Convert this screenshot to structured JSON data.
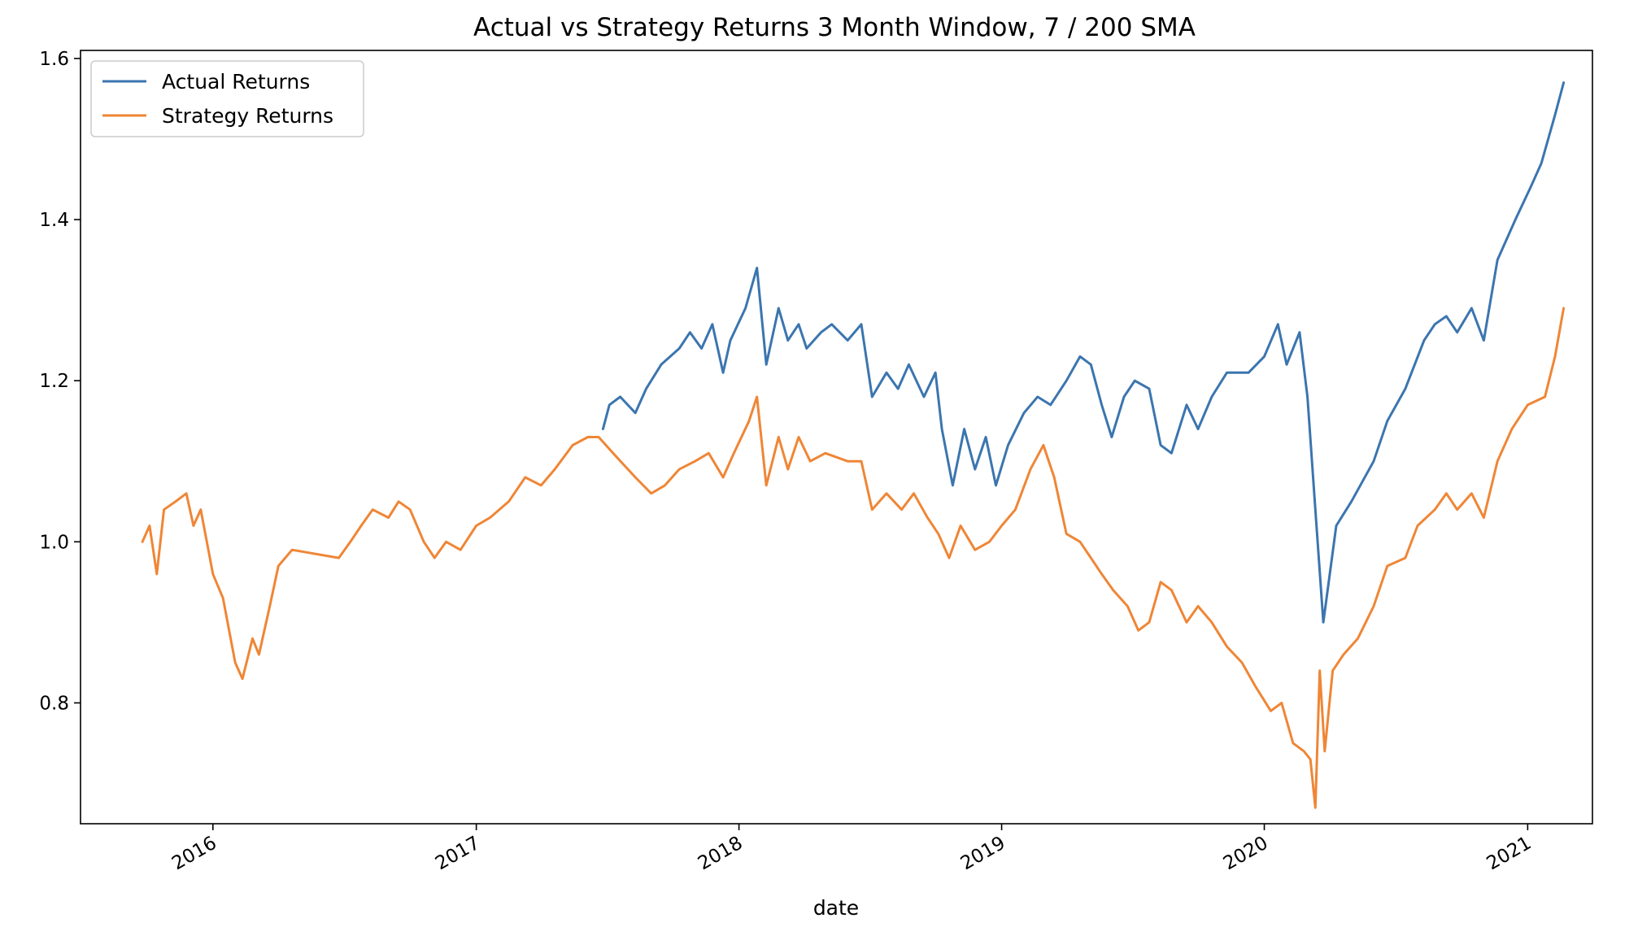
{
  "chart_data": {
    "type": "line",
    "title": "Actual vs Strategy Returns 3 Month Window, 7 / 200 SMA",
    "xlabel": "date",
    "ylabel": "",
    "x_range": [
      "2015-07-01",
      "2021-04-01"
    ],
    "ylim": [
      0.65,
      1.61
    ],
    "y_ticks": [
      0.8,
      1.0,
      1.2,
      1.4,
      1.6
    ],
    "y_tick_labels": [
      "0.8",
      "1.0",
      "1.2",
      "1.4",
      "1.6"
    ],
    "x_ticks": [
      "2016-01-01",
      "2017-01-01",
      "2018-01-01",
      "2019-01-01",
      "2020-01-01",
      "2021-01-01"
    ],
    "x_tick_labels": [
      "2016",
      "2017",
      "2018",
      "2019",
      "2020",
      "2021"
    ],
    "grid": false,
    "legend_position": "top-left",
    "series": [
      {
        "name": "Actual Returns",
        "color": "#3b75af",
        "points": [
          [
            "2017-06-26",
            1.14
          ],
          [
            "2017-07-05",
            1.17
          ],
          [
            "2017-07-20",
            1.18
          ],
          [
            "2017-08-10",
            1.16
          ],
          [
            "2017-08-25",
            1.19
          ],
          [
            "2017-09-15",
            1.22
          ],
          [
            "2017-10-10",
            1.24
          ],
          [
            "2017-10-25",
            1.26
          ],
          [
            "2017-11-10",
            1.24
          ],
          [
            "2017-11-25",
            1.27
          ],
          [
            "2017-12-10",
            1.21
          ],
          [
            "2017-12-20",
            1.25
          ],
          [
            "2018-01-10",
            1.29
          ],
          [
            "2018-01-26",
            1.34
          ],
          [
            "2018-02-08",
            1.22
          ],
          [
            "2018-02-25",
            1.29
          ],
          [
            "2018-03-10",
            1.25
          ],
          [
            "2018-03-25",
            1.27
          ],
          [
            "2018-04-05",
            1.24
          ],
          [
            "2018-04-25",
            1.26
          ],
          [
            "2018-05-10",
            1.27
          ],
          [
            "2018-06-01",
            1.25
          ],
          [
            "2018-06-20",
            1.27
          ],
          [
            "2018-07-05",
            1.18
          ],
          [
            "2018-07-25",
            1.21
          ],
          [
            "2018-08-10",
            1.19
          ],
          [
            "2018-08-25",
            1.22
          ],
          [
            "2018-09-15",
            1.18
          ],
          [
            "2018-10-01",
            1.21
          ],
          [
            "2018-10-10",
            1.14
          ],
          [
            "2018-10-25",
            1.07
          ],
          [
            "2018-11-10",
            1.14
          ],
          [
            "2018-11-25",
            1.09
          ],
          [
            "2018-12-10",
            1.13
          ],
          [
            "2018-12-24",
            1.07
          ],
          [
            "2019-01-10",
            1.12
          ],
          [
            "2019-02-01",
            1.16
          ],
          [
            "2019-02-20",
            1.18
          ],
          [
            "2019-03-10",
            1.17
          ],
          [
            "2019-04-01",
            1.2
          ],
          [
            "2019-04-20",
            1.23
          ],
          [
            "2019-05-05",
            1.22
          ],
          [
            "2019-05-20",
            1.17
          ],
          [
            "2019-06-03",
            1.13
          ],
          [
            "2019-06-20",
            1.18
          ],
          [
            "2019-07-05",
            1.2
          ],
          [
            "2019-07-25",
            1.19
          ],
          [
            "2019-08-10",
            1.12
          ],
          [
            "2019-08-25",
            1.11
          ],
          [
            "2019-09-15",
            1.17
          ],
          [
            "2019-10-01",
            1.14
          ],
          [
            "2019-10-20",
            1.18
          ],
          [
            "2019-11-10",
            1.21
          ],
          [
            "2019-12-10",
            1.21
          ],
          [
            "2020-01-01",
            1.23
          ],
          [
            "2020-01-20",
            1.27
          ],
          [
            "2020-02-01",
            1.22
          ],
          [
            "2020-02-19",
            1.26
          ],
          [
            "2020-03-01",
            1.18
          ],
          [
            "2020-03-12",
            1.04
          ],
          [
            "2020-03-23",
            0.9
          ],
          [
            "2020-04-10",
            1.02
          ],
          [
            "2020-05-01",
            1.05
          ],
          [
            "2020-06-01",
            1.1
          ],
          [
            "2020-06-20",
            1.15
          ],
          [
            "2020-07-15",
            1.19
          ],
          [
            "2020-08-10",
            1.25
          ],
          [
            "2020-08-25",
            1.27
          ],
          [
            "2020-09-10",
            1.28
          ],
          [
            "2020-09-25",
            1.26
          ],
          [
            "2020-10-15",
            1.29
          ],
          [
            "2020-11-01",
            1.25
          ],
          [
            "2020-11-20",
            1.35
          ],
          [
            "2020-12-15",
            1.4
          ],
          [
            "2021-01-05",
            1.44
          ],
          [
            "2021-01-20",
            1.47
          ],
          [
            "2021-02-08",
            1.53
          ],
          [
            "2021-02-20",
            1.57
          ]
        ]
      },
      {
        "name": "Strategy Returns",
        "color": "#ef8636",
        "points": [
          [
            "2015-09-25",
            1.0
          ],
          [
            "2015-10-05",
            1.02
          ],
          [
            "2015-10-15",
            0.96
          ],
          [
            "2015-10-25",
            1.04
          ],
          [
            "2015-11-10",
            1.05
          ],
          [
            "2015-11-25",
            1.06
          ],
          [
            "2015-12-05",
            1.02
          ],
          [
            "2015-12-15",
            1.04
          ],
          [
            "2016-01-01",
            0.96
          ],
          [
            "2016-01-15",
            0.93
          ],
          [
            "2016-02-01",
            0.85
          ],
          [
            "2016-02-11",
            0.83
          ],
          [
            "2016-02-25",
            0.88
          ],
          [
            "2016-03-05",
            0.86
          ],
          [
            "2016-03-20",
            0.92
          ],
          [
            "2016-04-01",
            0.97
          ],
          [
            "2016-04-20",
            0.99
          ],
          [
            "2016-06-24",
            0.98
          ],
          [
            "2016-07-10",
            1.0
          ],
          [
            "2016-07-25",
            1.02
          ],
          [
            "2016-08-10",
            1.04
          ],
          [
            "2016-09-01",
            1.03
          ],
          [
            "2016-09-15",
            1.05
          ],
          [
            "2016-10-01",
            1.04
          ],
          [
            "2016-10-20",
            1.0
          ],
          [
            "2016-11-04",
            0.98
          ],
          [
            "2016-11-20",
            1.0
          ],
          [
            "2016-12-10",
            0.99
          ],
          [
            "2017-01-01",
            1.02
          ],
          [
            "2017-01-20",
            1.03
          ],
          [
            "2017-02-15",
            1.05
          ],
          [
            "2017-03-10",
            1.08
          ],
          [
            "2017-04-01",
            1.07
          ],
          [
            "2017-04-20",
            1.09
          ],
          [
            "2017-05-15",
            1.12
          ],
          [
            "2017-06-05",
            1.13
          ],
          [
            "2017-06-20",
            1.13
          ],
          [
            "2017-07-10",
            1.11
          ],
          [
            "2017-08-10",
            1.08
          ],
          [
            "2017-09-01",
            1.06
          ],
          [
            "2017-09-20",
            1.07
          ],
          [
            "2017-10-10",
            1.09
          ],
          [
            "2017-11-01",
            1.1
          ],
          [
            "2017-11-20",
            1.11
          ],
          [
            "2017-12-10",
            1.08
          ],
          [
            "2017-12-25",
            1.11
          ],
          [
            "2018-01-15",
            1.15
          ],
          [
            "2018-01-26",
            1.18
          ],
          [
            "2018-02-08",
            1.07
          ],
          [
            "2018-02-25",
            1.13
          ],
          [
            "2018-03-10",
            1.09
          ],
          [
            "2018-03-25",
            1.13
          ],
          [
            "2018-04-10",
            1.1
          ],
          [
            "2018-05-01",
            1.11
          ],
          [
            "2018-06-01",
            1.1
          ],
          [
            "2018-06-20",
            1.1
          ],
          [
            "2018-07-05",
            1.04
          ],
          [
            "2018-07-25",
            1.06
          ],
          [
            "2018-08-15",
            1.04
          ],
          [
            "2018-09-01",
            1.06
          ],
          [
            "2018-09-20",
            1.03
          ],
          [
            "2018-10-05",
            1.01
          ],
          [
            "2018-10-20",
            0.98
          ],
          [
            "2018-11-05",
            1.02
          ],
          [
            "2018-11-25",
            0.99
          ],
          [
            "2018-12-15",
            1.0
          ],
          [
            "2019-01-01",
            1.02
          ],
          [
            "2019-01-20",
            1.04
          ],
          [
            "2019-02-10",
            1.09
          ],
          [
            "2019-02-28",
            1.12
          ],
          [
            "2019-03-15",
            1.08
          ],
          [
            "2019-04-01",
            1.01
          ],
          [
            "2019-04-20",
            1.0
          ],
          [
            "2019-05-05",
            0.98
          ],
          [
            "2019-05-20",
            0.96
          ],
          [
            "2019-06-05",
            0.94
          ],
          [
            "2019-06-25",
            0.92
          ],
          [
            "2019-07-10",
            0.89
          ],
          [
            "2019-07-25",
            0.9
          ],
          [
            "2019-08-10",
            0.95
          ],
          [
            "2019-08-25",
            0.94
          ],
          [
            "2019-09-15",
            0.9
          ],
          [
            "2019-10-01",
            0.92
          ],
          [
            "2019-10-20",
            0.9
          ],
          [
            "2019-11-10",
            0.87
          ],
          [
            "2019-12-01",
            0.85
          ],
          [
            "2019-12-20",
            0.82
          ],
          [
            "2020-01-10",
            0.79
          ],
          [
            "2020-01-25",
            0.8
          ],
          [
            "2020-02-10",
            0.75
          ],
          [
            "2020-02-25",
            0.74
          ],
          [
            "2020-03-05",
            0.73
          ],
          [
            "2020-03-12",
            0.67
          ],
          [
            "2020-03-18",
            0.84
          ],
          [
            "2020-03-25",
            0.74
          ],
          [
            "2020-04-05",
            0.84
          ],
          [
            "2020-04-20",
            0.86
          ],
          [
            "2020-05-10",
            0.88
          ],
          [
            "2020-06-01",
            0.92
          ],
          [
            "2020-06-20",
            0.97
          ],
          [
            "2020-07-15",
            0.98
          ],
          [
            "2020-08-01",
            1.02
          ],
          [
            "2020-08-25",
            1.04
          ],
          [
            "2020-09-10",
            1.06
          ],
          [
            "2020-09-25",
            1.04
          ],
          [
            "2020-10-15",
            1.06
          ],
          [
            "2020-11-01",
            1.03
          ],
          [
            "2020-11-20",
            1.1
          ],
          [
            "2020-12-10",
            1.14
          ],
          [
            "2021-01-01",
            1.17
          ],
          [
            "2021-01-25",
            1.18
          ],
          [
            "2021-02-08",
            1.23
          ],
          [
            "2021-02-20",
            1.29
          ]
        ]
      }
    ]
  }
}
